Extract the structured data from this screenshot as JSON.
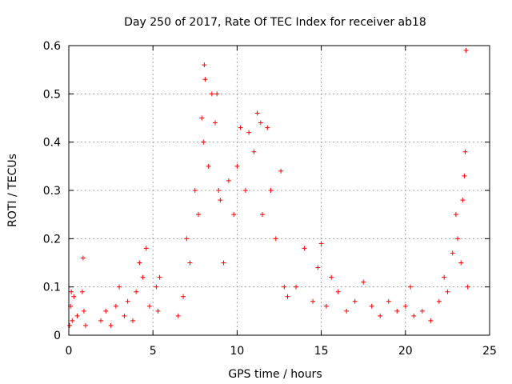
{
  "chart_data": {
    "type": "scatter",
    "title": "Day 250 of 2017, Rate Of TEC Index for receiver ab18",
    "xlabel": "GPS time / hours",
    "ylabel": "ROTI / TECUs",
    "xlim": [
      0,
      25
    ],
    "ylim": [
      0,
      0.6
    ],
    "xticks": [
      "0",
      "5",
      "10",
      "15",
      "20",
      "25"
    ],
    "yticks": [
      "0",
      "0.1",
      "0.2",
      "0.3",
      "0.4",
      "0.5",
      "0.6"
    ],
    "grid": true,
    "marker": "plus",
    "marker_color": "#ff0000",
    "series": [
      {
        "points": [
          [
            0.05,
            0.02
          ],
          [
            0.1,
            0.06
          ],
          [
            0.15,
            0.09
          ],
          [
            0.2,
            0.03
          ],
          [
            0.3,
            0.08
          ],
          [
            0.5,
            0.04
          ],
          [
            0.8,
            0.09
          ],
          [
            0.85,
            0.16
          ],
          [
            0.9,
            0.05
          ],
          [
            1.0,
            0.02
          ],
          [
            1.9,
            0.03
          ],
          [
            2.2,
            0.05
          ],
          [
            2.5,
            0.02
          ],
          [
            2.8,
            0.06
          ],
          [
            3.0,
            0.1
          ],
          [
            3.3,
            0.04
          ],
          [
            3.5,
            0.07
          ],
          [
            3.8,
            0.03
          ],
          [
            4.0,
            0.09
          ],
          [
            4.2,
            0.15
          ],
          [
            4.4,
            0.12
          ],
          [
            4.6,
            0.18
          ],
          [
            4.8,
            0.06
          ],
          [
            5.2,
            0.1
          ],
          [
            5.3,
            0.05
          ],
          [
            5.4,
            0.12
          ],
          [
            6.5,
            0.04
          ],
          [
            6.8,
            0.08
          ],
          [
            7.0,
            0.2
          ],
          [
            7.2,
            0.15
          ],
          [
            7.5,
            0.3
          ],
          [
            7.7,
            0.25
          ],
          [
            7.9,
            0.45
          ],
          [
            8.0,
            0.4
          ],
          [
            8.05,
            0.56
          ],
          [
            8.1,
            0.53
          ],
          [
            8.3,
            0.35
          ],
          [
            8.5,
            0.5
          ],
          [
            8.7,
            0.44
          ],
          [
            8.8,
            0.5
          ],
          [
            8.9,
            0.3
          ],
          [
            9.0,
            0.28
          ],
          [
            9.2,
            0.15
          ],
          [
            9.5,
            0.32
          ],
          [
            9.8,
            0.25
          ],
          [
            10.0,
            0.35
          ],
          [
            10.2,
            0.43
          ],
          [
            10.5,
            0.3
          ],
          [
            10.7,
            0.42
          ],
          [
            11.0,
            0.38
          ],
          [
            11.2,
            0.46
          ],
          [
            11.4,
            0.44
          ],
          [
            11.5,
            0.25
          ],
          [
            11.8,
            0.43
          ],
          [
            12.0,
            0.3
          ],
          [
            12.3,
            0.2
          ],
          [
            12.6,
            0.34
          ],
          [
            12.8,
            0.1
          ],
          [
            13.0,
            0.08
          ],
          [
            13.5,
            0.1
          ],
          [
            14.0,
            0.18
          ],
          [
            14.5,
            0.07
          ],
          [
            14.8,
            0.14
          ],
          [
            15.0,
            0.19
          ],
          [
            15.3,
            0.06
          ],
          [
            15.6,
            0.12
          ],
          [
            16.0,
            0.09
          ],
          [
            16.5,
            0.05
          ],
          [
            17.0,
            0.07
          ],
          [
            17.5,
            0.11
          ],
          [
            18.0,
            0.06
          ],
          [
            18.5,
            0.04
          ],
          [
            19.0,
            0.07
          ],
          [
            19.5,
            0.05
          ],
          [
            20.0,
            0.06
          ],
          [
            20.3,
            0.1
          ],
          [
            20.5,
            0.04
          ],
          [
            21.0,
            0.05
          ],
          [
            21.5,
            0.03
          ],
          [
            22.0,
            0.07
          ],
          [
            22.3,
            0.12
          ],
          [
            22.5,
            0.09
          ],
          [
            22.8,
            0.17
          ],
          [
            23.0,
            0.25
          ],
          [
            23.1,
            0.2
          ],
          [
            23.3,
            0.15
          ],
          [
            23.4,
            0.28
          ],
          [
            23.5,
            0.33
          ],
          [
            23.55,
            0.38
          ],
          [
            23.6,
            0.59
          ],
          [
            23.7,
            0.1
          ]
        ]
      }
    ]
  }
}
